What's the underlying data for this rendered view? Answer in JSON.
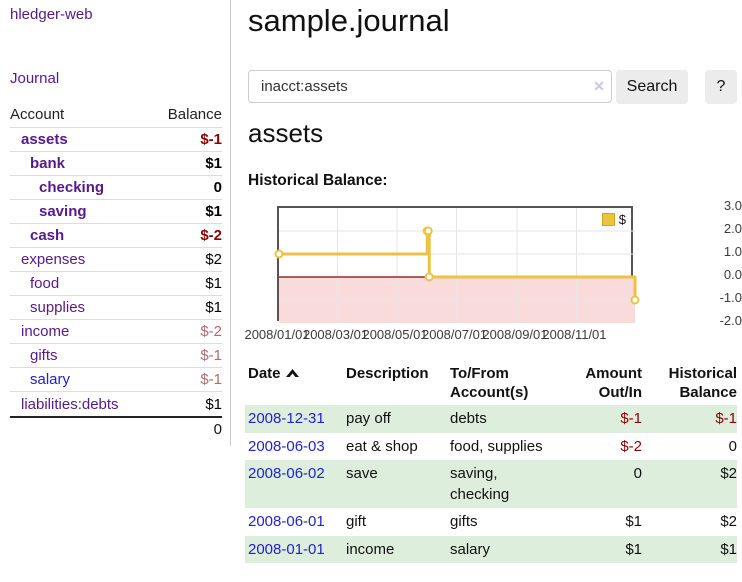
{
  "app": {
    "brand": "hledger-web"
  },
  "colors": {
    "link_purple": "#551a8b",
    "link_blue": "#2222cc",
    "negative_strong": "#8b0000",
    "negative_soft": "#b16b6b",
    "row_stripe_green": "#ddeedd",
    "accent_gold": "#edc240"
  },
  "sidebar": {
    "journal_link": "Journal",
    "accounts": {
      "col_account": "Account",
      "col_balance": "Balance",
      "rows": [
        {
          "account": "assets",
          "balance": "$-1",
          "indent": 1,
          "bold": true,
          "neg": "strong"
        },
        {
          "account": "bank",
          "balance": "$1",
          "indent": 2,
          "bold": true
        },
        {
          "account": "checking",
          "balance": "0",
          "indent": 3,
          "bold": true
        },
        {
          "account": "saving",
          "balance": "$1",
          "indent": 3,
          "bold": true
        },
        {
          "account": "cash",
          "balance": "$-2",
          "indent": 2,
          "bold": true,
          "neg": "strong"
        },
        {
          "account": "expenses",
          "balance": "$2",
          "indent": 1
        },
        {
          "account": "food",
          "balance": "$1",
          "indent": 2
        },
        {
          "account": "supplies",
          "balance": "$1",
          "indent": 2
        },
        {
          "account": "income",
          "balance": "$-2",
          "indent": 1,
          "neg": "soft"
        },
        {
          "account": "gifts",
          "balance": "$-1",
          "indent": 2,
          "neg": "soft"
        },
        {
          "account": "salary",
          "balance": "$-1",
          "indent": 2,
          "neg": "soft",
          "blue": true
        },
        {
          "account": "liabilities:debts",
          "balance": "$1",
          "indent": 1
        }
      ],
      "total": "0"
    }
  },
  "main": {
    "title": "sample.journal",
    "search": {
      "value": "inacct:assets",
      "clear_icon": "✕",
      "search_label": "Search",
      "help_label": "?"
    },
    "account_heading": "assets"
  },
  "chart_data": {
    "type": "line",
    "step": true,
    "title": "Historical Balance:",
    "legend": {
      "label": "$",
      "position": "top-right",
      "swatch_color": "#edc240"
    },
    "series": [
      {
        "name": "$",
        "color": "#edc240",
        "points": [
          {
            "date": "2008-01-01",
            "day": 0,
            "value": 1
          },
          {
            "date": "2008-06-01",
            "day": 152,
            "value": 2
          },
          {
            "date": "2008-06-02",
            "day": 153,
            "value": 2
          },
          {
            "date": "2008-06-03",
            "day": 154,
            "value": 0
          },
          {
            "date": "2008-12-31",
            "day": 365,
            "value": -1
          }
        ]
      }
    ],
    "x_ticks": [
      {
        "label": "2008/01/01",
        "day": 0
      },
      {
        "label": "2008/03/01",
        "day": 60
      },
      {
        "label": "2008/05/01",
        "day": 121
      },
      {
        "label": "2008/07/01",
        "day": 182
      },
      {
        "label": "2008/09/01",
        "day": 244
      },
      {
        "label": "2008/11/01",
        "day": 305
      }
    ],
    "y_ticks": [
      "3.0",
      "2.0",
      "1.0",
      "0.0",
      "-1.0",
      "-2.0"
    ],
    "ylim": [
      -2,
      3
    ],
    "xlim_days": [
      0,
      365
    ],
    "grid": true,
    "colors": {
      "negative_region": "#f9dbdb",
      "zero_line": "#8b0000",
      "border": "#545454",
      "gridline": "#e6e6e6"
    }
  },
  "transactions": {
    "headers": [
      {
        "label": "Date",
        "sorted": "asc"
      },
      {
        "label": "Description"
      },
      {
        "label": "To/From Account(s)"
      },
      {
        "label": "Amount Out/In"
      },
      {
        "label": "Historical Balance"
      }
    ],
    "rows": [
      {
        "date": "2008-12-31",
        "description": "pay off",
        "accounts": "debts",
        "amount": "$-1",
        "amount_neg": true,
        "balance": "$-1",
        "balance_neg": true,
        "stripe": true
      },
      {
        "date": "2008-06-03",
        "description": "eat & shop",
        "accounts": "food, supplies",
        "amount": "$-2",
        "amount_neg": true,
        "balance": "0",
        "balance_neg": false,
        "stripe": false
      },
      {
        "date": "2008-06-02",
        "description": "save",
        "accounts": "saving, checking",
        "amount": "0",
        "amount_neg": false,
        "balance": "$2",
        "balance_neg": false,
        "stripe": true
      },
      {
        "date": "2008-06-01",
        "description": "gift",
        "accounts": "gifts",
        "amount": "$1",
        "amount_neg": false,
        "balance": "$2",
        "balance_neg": false,
        "stripe": false
      },
      {
        "date": "2008-01-01",
        "description": "income",
        "accounts": "salary",
        "amount": "$1",
        "amount_neg": false,
        "balance": "$1",
        "balance_neg": false,
        "stripe": true
      }
    ]
  }
}
